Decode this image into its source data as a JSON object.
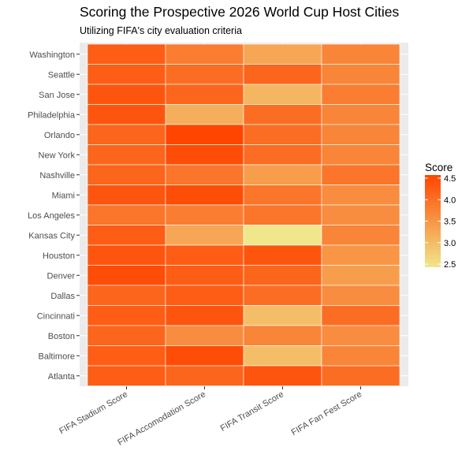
{
  "colors": {
    "panel_background": "#ebebeb",
    "gradient_low": "#f0e68c",
    "gradient_high": "#ff4500",
    "tile_border": "#ffffff"
  },
  "chart_data": {
    "type": "heatmap",
    "title": "Scoring the Prospective 2026 World Cup Host Cities",
    "subtitle": "Utilizing FIFA's city evaluation criteria",
    "xlabel": "",
    "ylabel": "",
    "x_categories": [
      "FIFA Stadium Score",
      "FIFA Accomodation Score",
      "FIFA Transit Score",
      "FIFA Fan Fest Score"
    ],
    "y_categories": [
      "Washington",
      "Seattle",
      "San Jose",
      "Philadelphia",
      "Orlando",
      "New York",
      "Nashville",
      "Miami",
      "Los Angeles",
      "Kansas City",
      "Houston",
      "Denver",
      "Dallas",
      "Cincinnati",
      "Boston",
      "Baltimore",
      "Atlanta"
    ],
    "values": [
      [
        4.2,
        3.8,
        3.3,
        3.7
      ],
      [
        4.2,
        4.0,
        4.1,
        3.7
      ],
      [
        4.3,
        4.1,
        3.1,
        3.8
      ],
      [
        4.3,
        3.2,
        4.0,
        3.7
      ],
      [
        4.1,
        4.5,
        4.0,
        3.7
      ],
      [
        4.1,
        4.4,
        4.0,
        3.7
      ],
      [
        4.1,
        3.9,
        3.4,
        3.9
      ],
      [
        4.3,
        4.4,
        3.9,
        3.6
      ],
      [
        3.9,
        3.8,
        3.9,
        3.6
      ],
      [
        4.2,
        3.3,
        2.5,
        3.7
      ],
      [
        4.3,
        4.2,
        4.3,
        3.5
      ],
      [
        4.4,
        4.2,
        4.1,
        3.4
      ],
      [
        4.1,
        4.2,
        4.0,
        3.6
      ],
      [
        4.2,
        4.3,
        3.0,
        4.0
      ],
      [
        4.1,
        3.6,
        3.7,
        3.6
      ],
      [
        4.2,
        4.4,
        3.0,
        3.7
      ],
      [
        4.2,
        4.1,
        4.3,
        4.0
      ]
    ],
    "legend": {
      "title": "Score",
      "position": "right",
      "ticks": [
        "2.5",
        "3.0",
        "3.5",
        "4.0",
        "4.5"
      ],
      "range": [
        2.5,
        4.5
      ]
    },
    "grid": true
  }
}
